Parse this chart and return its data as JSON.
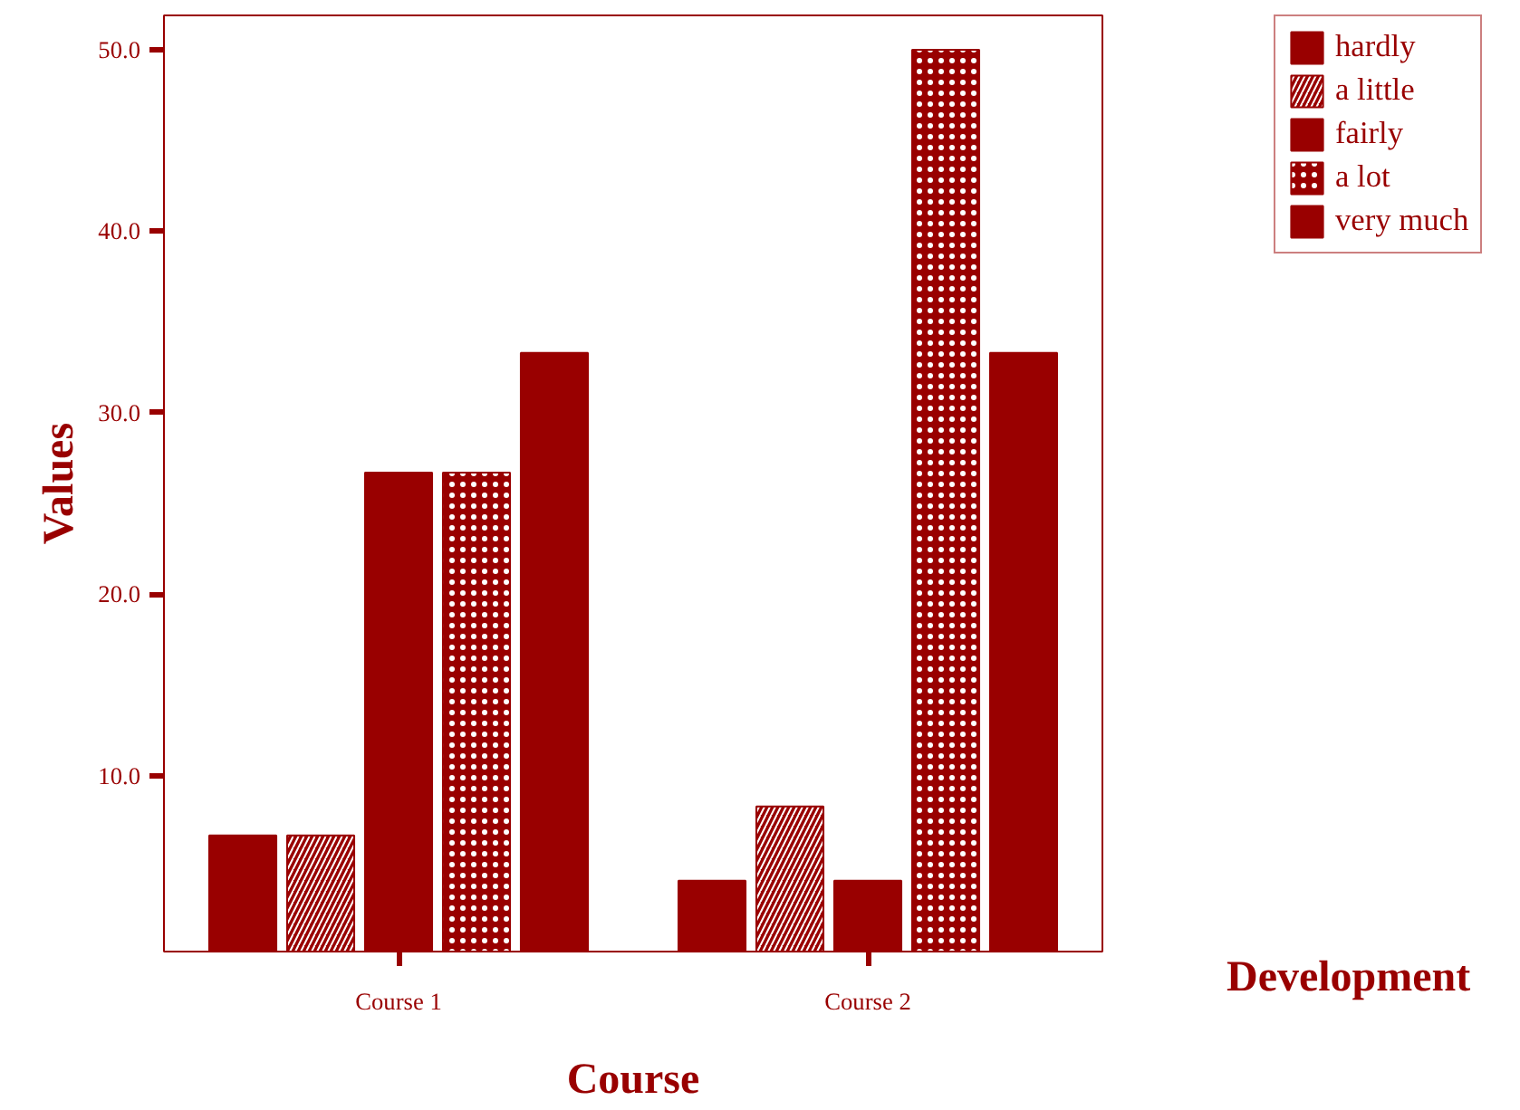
{
  "chart_data": {
    "type": "bar",
    "xlabel": "Course",
    "ylabel": "Values",
    "legend_title": "Development",
    "categories": [
      "Course 1",
      "Course 2"
    ],
    "series": [
      {
        "name": "hardly",
        "color": "#990000",
        "values": [
          6.7,
          4.2
        ]
      },
      {
        "name": "a little",
        "color": "#990000",
        "values": [
          6.7,
          8.3
        ]
      },
      {
        "name": "fairly",
        "color": "#990000",
        "values": [
          26.7,
          4.2
        ]
      },
      {
        "name": "a lot",
        "color": "#990000",
        "values": [
          26.7,
          50.0
        ]
      },
      {
        "name": "very much",
        "color": "#990000",
        "values": [
          33.3,
          33.3
        ]
      }
    ],
    "ylim": [
      0.3,
      51.9
    ],
    "yticks": [
      {
        "value": 10,
        "label": "10.0"
      },
      {
        "value": 20,
        "label": "20.0"
      },
      {
        "value": 30,
        "label": "30.0"
      },
      {
        "value": 40,
        "label": "40.0"
      },
      {
        "value": 50,
        "label": "50.0"
      }
    ],
    "grid": false,
    "legend": "top right"
  }
}
